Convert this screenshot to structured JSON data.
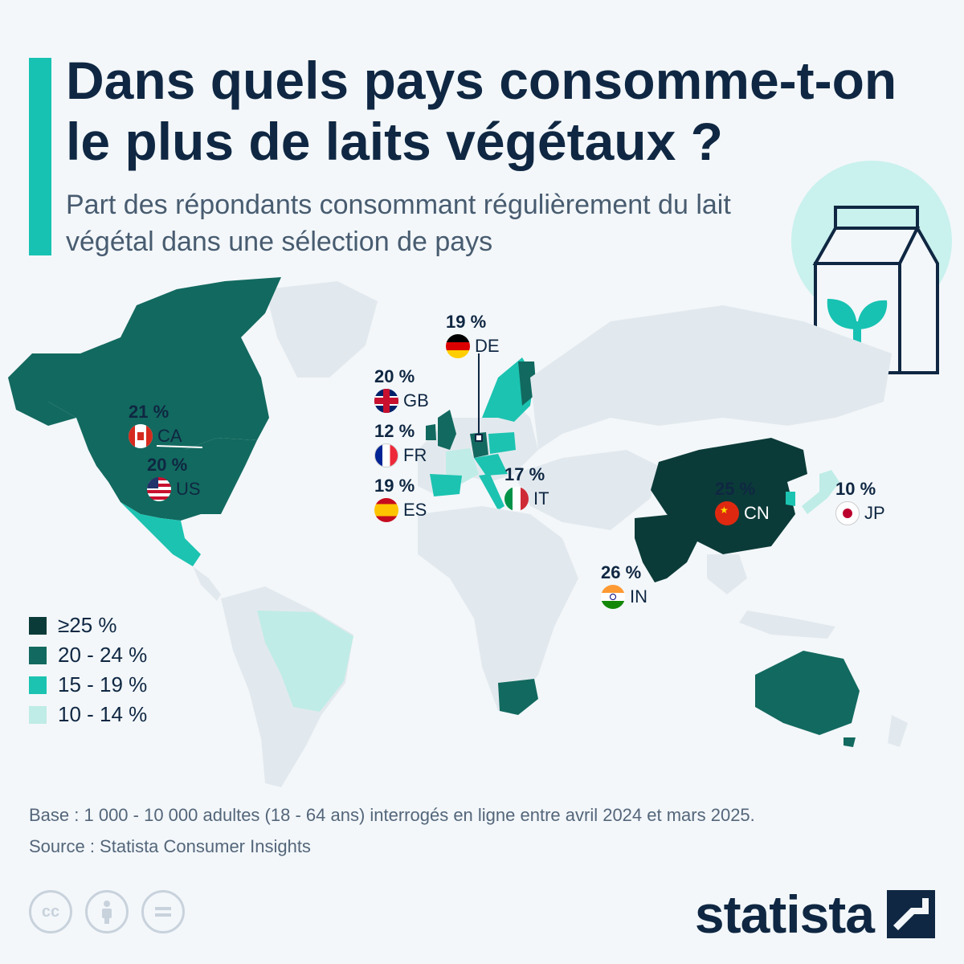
{
  "title": "Dans quels pays consomme-t-on le plus de laits végétaux ?",
  "subtitle": "Part des répondants consommant régulièrement du lait végétal dans une sélection de pays",
  "colors": {
    "accent": "#17c2b2",
    "bin_25_plus": "#0b3b38",
    "bin_20_24": "#12695f",
    "bin_15_19": "#1cc3b1",
    "bin_10_14": "#bfece6",
    "land_other": "#e2e9ee"
  },
  "legend": [
    {
      "label": "≥25 %",
      "color": "#0b3b38"
    },
    {
      "label": "20 - 24 %",
      "color": "#12695f"
    },
    {
      "label": "15 - 19 %",
      "color": "#1cc3b1"
    },
    {
      "label": "10 - 14 %",
      "color": "#bfece6"
    }
  ],
  "countries": [
    {
      "code": "CA",
      "value": "21 %"
    },
    {
      "code": "US",
      "value": "20 %"
    },
    {
      "code": "DE",
      "value": "19 %"
    },
    {
      "code": "GB",
      "value": "20 %"
    },
    {
      "code": "FR",
      "value": "12 %"
    },
    {
      "code": "ES",
      "value": "19 %"
    },
    {
      "code": "IT",
      "value": "17 %"
    },
    {
      "code": "CN",
      "value": "25 %"
    },
    {
      "code": "JP",
      "value": "10 %"
    },
    {
      "code": "IN",
      "value": "26 %"
    }
  ],
  "footer": {
    "base": "Base : 1 000 - 10 000 adultes (18 - 64 ans) interrogés en ligne entre avril 2024 et mars 2025.",
    "source": "Source : Statista Consumer Insights"
  },
  "cc_icons": [
    "cc-icon",
    "attribution-icon",
    "no-derivatives-icon"
  ],
  "logo": {
    "text": "statista"
  },
  "illustration": "plant-milk-carton-icon"
}
